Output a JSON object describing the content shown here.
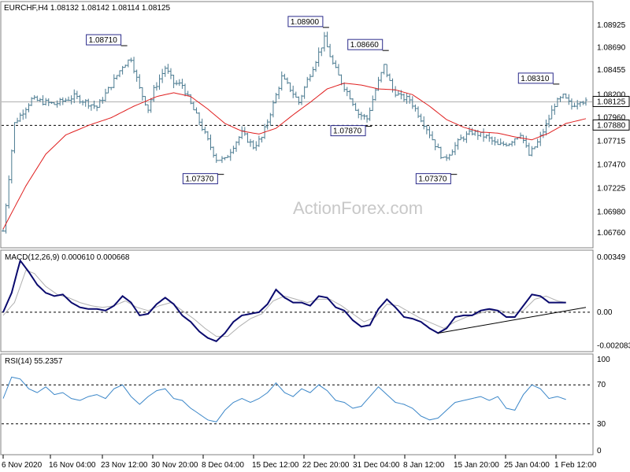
{
  "chart_data": [
    {
      "type": "bar",
      "subtype": "ohlc",
      "title": "EURCHF,H4  1.08132 1.08142 1.08114 1.08125",
      "watermark": "ActionForex.com",
      "ylim": [
        1.0663,
        1.0912
      ],
      "y_ticks": [
        "1.08925",
        "1.08690",
        "1.08455",
        "1.08200",
        "1.07960",
        "1.07715",
        "1.07470",
        "1.07225",
        "1.06980",
        "1.06760"
      ],
      "current_price_label": "1.08125",
      "level_label": "1.07880",
      "level": 1.0788,
      "annotations": [
        "1.08710",
        "1.08900",
        "1.08660",
        "1.08310",
        "1.07870",
        "1.07370",
        "1.07370"
      ],
      "colors": {
        "bars": "#4a7a90",
        "ma": "#e02020",
        "label_border": "#2a2a8a",
        "label_text": "#1a1a6a"
      },
      "close_path": [
        [
          0,
          1.0678
        ],
        [
          4,
          1.079
        ],
        [
          10,
          1.0815
        ],
        [
          18,
          1.081
        ],
        [
          25,
          1.0818
        ],
        [
          33,
          1.0807
        ],
        [
          38,
          1.083
        ],
        [
          42,
          1.085
        ],
        [
          45,
          1.0858
        ],
        [
          48,
          1.0826
        ],
        [
          51,
          1.0805
        ],
        [
          53,
          1.0825
        ],
        [
          57,
          1.0848
        ],
        [
          60,
          1.0832
        ],
        [
          63,
          1.083
        ],
        [
          66,
          1.081
        ],
        [
          69,
          1.0792
        ],
        [
          72,
          1.0772
        ],
        [
          75,
          1.0753
        ],
        [
          78,
          1.0752
        ],
        [
          81,
          1.0767
        ],
        [
          84,
          1.078
        ],
        [
          88,
          1.0766
        ],
        [
          91,
          1.0775
        ],
        [
          95,
          1.081
        ],
        [
          98,
          1.0838
        ],
        [
          101,
          1.0826
        ],
        [
          104,
          1.0812
        ],
        [
          107,
          1.0835
        ],
        [
          110,
          1.0856
        ],
        [
          113,
          1.0878
        ],
        [
          116,
          1.0852
        ],
        [
          119,
          1.0833
        ],
        [
          122,
          1.0818
        ],
        [
          125,
          1.08
        ],
        [
          128,
          1.0795
        ],
        [
          131,
          1.0825
        ],
        [
          134,
          1.085
        ],
        [
          137,
          1.0825
        ],
        [
          140,
          1.0817
        ],
        [
          143,
          1.0815
        ],
        [
          146,
          1.08
        ],
        [
          149,
          1.0785
        ],
        [
          152,
          1.0768
        ],
        [
          155,
          1.0752
        ],
        [
          158,
          1.0763
        ],
        [
          161,
          1.0774
        ],
        [
          165,
          1.0781
        ],
        [
          170,
          1.0776
        ],
        [
          174,
          1.0767
        ],
        [
          178,
          1.077
        ],
        [
          182,
          1.078
        ],
        [
          185,
          1.0757
        ],
        [
          188,
          1.077
        ],
        [
          191,
          1.0788
        ],
        [
          194,
          1.081
        ],
        [
          197,
          1.0818
        ],
        [
          200,
          1.0808
        ],
        [
          203,
          1.0815
        ],
        [
          205,
          1.0812
        ]
      ],
      "ma_path": [
        [
          0,
          1.068
        ],
        [
          8,
          1.0725
        ],
        [
          15,
          1.0758
        ],
        [
          22,
          1.0778
        ],
        [
          30,
          1.0788
        ],
        [
          38,
          1.0796
        ],
        [
          46,
          1.0808
        ],
        [
          54,
          1.0818
        ],
        [
          60,
          1.0822
        ],
        [
          66,
          1.0818
        ],
        [
          72,
          1.0805
        ],
        [
          78,
          1.079
        ],
        [
          84,
          1.0782
        ],
        [
          90,
          1.0779
        ],
        [
          96,
          1.0785
        ],
        [
          102,
          1.0799
        ],
        [
          108,
          1.0812
        ],
        [
          114,
          1.0826
        ],
        [
          120,
          1.0832
        ],
        [
          126,
          1.083
        ],
        [
          132,
          1.0826
        ],
        [
          138,
          1.0825
        ],
        [
          144,
          1.082
        ],
        [
          150,
          1.0808
        ],
        [
          156,
          1.0794
        ],
        [
          162,
          1.0786
        ],
        [
          168,
          1.0781
        ],
        [
          174,
          1.078
        ],
        [
          180,
          1.0776
        ],
        [
          186,
          1.0773
        ],
        [
          192,
          1.078
        ],
        [
          198,
          1.079
        ],
        [
          205,
          1.0795
        ]
      ]
    },
    {
      "type": "line",
      "title": "MACD(12,26,9) 0.000610 0.000668",
      "ylim": [
        -0.0023,
        0.0037
      ],
      "y_ticks": [
        "0.00349",
        "0.00",
        "-0.002083"
      ],
      "macd_path": [
        [
          0,
          0.0
        ],
        [
          3,
          0.0012
        ],
        [
          6,
          0.0032
        ],
        [
          9,
          0.0025
        ],
        [
          12,
          0.0017
        ],
        [
          15,
          0.0012
        ],
        [
          18,
          0.001
        ],
        [
          21,
          0.0011
        ],
        [
          24,
          0.0006
        ],
        [
          27,
          0.0003
        ],
        [
          30,
          0.0002
        ],
        [
          33,
          0.0002
        ],
        [
          36,
          0.0001
        ],
        [
          39,
          0.0004
        ],
        [
          42,
          0.001
        ],
        [
          45,
          0.0006
        ],
        [
          48,
          -0.0002
        ],
        [
          51,
          -0.0001
        ],
        [
          54,
          0.0005
        ],
        [
          57,
          0.0009
        ],
        [
          60,
          0.0005
        ],
        [
          63,
          -0.0002
        ],
        [
          66,
          -0.0006
        ],
        [
          69,
          -0.0012
        ],
        [
          72,
          -0.0016
        ],
        [
          75,
          -0.0018
        ],
        [
          78,
          -0.0013
        ],
        [
          81,
          -0.0006
        ],
        [
          84,
          -0.0002
        ],
        [
          87,
          -0.0001
        ],
        [
          90,
          0.0
        ],
        [
          93,
          0.0005
        ],
        [
          96,
          0.0014
        ],
        [
          99,
          0.0009
        ],
        [
          102,
          0.0006
        ],
        [
          105,
          0.0006
        ],
        [
          108,
          0.0004
        ],
        [
          111,
          0.001
        ],
        [
          114,
          0.0009
        ],
        [
          117,
          0.0003
        ],
        [
          120,
          0.0001
        ],
        [
          123,
          -0.0005
        ],
        [
          126,
          -0.0009
        ],
        [
          129,
          -0.0008
        ],
        [
          132,
          0.0002
        ],
        [
          135,
          0.0008
        ],
        [
          138,
          0.0003
        ],
        [
          141,
          -0.0003
        ],
        [
          144,
          -0.0004
        ],
        [
          147,
          -0.0006
        ],
        [
          150,
          -0.001
        ],
        [
          153,
          -0.0013
        ],
        [
          156,
          -0.001
        ],
        [
          159,
          -0.0003
        ],
        [
          162,
          -0.0002
        ],
        [
          165,
          -0.0002
        ],
        [
          168,
          0.0001
        ],
        [
          171,
          0.0002
        ],
        [
          174,
          0.0001
        ],
        [
          177,
          -0.0003
        ],
        [
          180,
          -0.0003
        ],
        [
          183,
          0.0004
        ],
        [
          186,
          0.0011
        ],
        [
          189,
          0.001
        ],
        [
          192,
          0.0006
        ],
        [
          195,
          0.0006
        ],
        [
          198,
          0.0006
        ]
      ],
      "signal_path": [
        [
          0,
          -0.0002
        ],
        [
          4,
          0.0006
        ],
        [
          8,
          0.0026
        ],
        [
          11,
          0.0024
        ],
        [
          15,
          0.0016
        ],
        [
          19,
          0.0011
        ],
        [
          23,
          0.0009
        ],
        [
          27,
          0.0006
        ],
        [
          31,
          0.0004
        ],
        [
          35,
          0.0003
        ],
        [
          39,
          0.0004
        ],
        [
          43,
          0.0007
        ],
        [
          47,
          0.0003
        ],
        [
          51,
          0.0001
        ],
        [
          55,
          0.0004
        ],
        [
          59,
          0.0006
        ],
        [
          63,
          0.0001
        ],
        [
          67,
          -0.0004
        ],
        [
          71,
          -0.001
        ],
        [
          75,
          -0.0015
        ],
        [
          79,
          -0.0015
        ],
        [
          83,
          -0.0009
        ],
        [
          87,
          -0.0004
        ],
        [
          91,
          -0.0001
        ],
        [
          95,
          0.0007
        ],
        [
          99,
          0.001
        ],
        [
          103,
          0.0008
        ],
        [
          107,
          0.0006
        ],
        [
          111,
          0.0008
        ],
        [
          115,
          0.0008
        ],
        [
          119,
          0.0004
        ],
        [
          123,
          -0.0001
        ],
        [
          127,
          -0.0006
        ],
        [
          131,
          -0.0003
        ],
        [
          135,
          0.0005
        ],
        [
          139,
          0.0004
        ],
        [
          143,
          0.0
        ],
        [
          147,
          -0.0004
        ],
        [
          151,
          -0.0007
        ],
        [
          155,
          -0.001
        ],
        [
          159,
          -0.0006
        ],
        [
          163,
          -0.0003
        ],
        [
          167,
          -0.0001
        ],
        [
          171,
          0.0001
        ],
        [
          175,
          0.0001
        ],
        [
          179,
          -0.0001
        ],
        [
          183,
          0.0001
        ],
        [
          187,
          0.0008
        ],
        [
          191,
          0.001
        ],
        [
          195,
          0.0007
        ],
        [
          198,
          0.0006
        ]
      ],
      "trendline": [
        [
          153,
          -0.0013
        ],
        [
          205,
          0.0003
        ]
      ]
    },
    {
      "type": "line",
      "title": "RSI(14) 55.2357",
      "ylim": [
        0,
        100
      ],
      "y_ticks": [
        "100",
        "70",
        "30",
        "0"
      ],
      "levels": [
        70,
        30
      ],
      "rsi_path": [
        [
          0,
          56
        ],
        [
          3,
          78
        ],
        [
          6,
          76
        ],
        [
          9,
          66
        ],
        [
          12,
          62
        ],
        [
          15,
          68
        ],
        [
          18,
          60
        ],
        [
          21,
          62
        ],
        [
          24,
          56
        ],
        [
          27,
          54
        ],
        [
          30,
          58
        ],
        [
          33,
          60
        ],
        [
          36,
          56
        ],
        [
          39,
          66
        ],
        [
          42,
          70
        ],
        [
          45,
          58
        ],
        [
          48,
          50
        ],
        [
          51,
          58
        ],
        [
          54,
          64
        ],
        [
          57,
          66
        ],
        [
          60,
          56
        ],
        [
          63,
          54
        ],
        [
          66,
          46
        ],
        [
          69,
          40
        ],
        [
          72,
          34
        ],
        [
          75,
          32
        ],
        [
          78,
          44
        ],
        [
          81,
          52
        ],
        [
          84,
          56
        ],
        [
          87,
          52
        ],
        [
          90,
          56
        ],
        [
          93,
          62
        ],
        [
          96,
          72
        ],
        [
          99,
          62
        ],
        [
          102,
          58
        ],
        [
          105,
          66
        ],
        [
          108,
          62
        ],
        [
          111,
          70
        ],
        [
          114,
          64
        ],
        [
          117,
          54
        ],
        [
          120,
          52
        ],
        [
          123,
          46
        ],
        [
          126,
          48
        ],
        [
          129,
          58
        ],
        [
          132,
          68
        ],
        [
          135,
          60
        ],
        [
          138,
          52
        ],
        [
          141,
          50
        ],
        [
          144,
          46
        ],
        [
          147,
          38
        ],
        [
          150,
          34
        ],
        [
          153,
          36
        ],
        [
          156,
          44
        ],
        [
          159,
          52
        ],
        [
          162,
          54
        ],
        [
          165,
          56
        ],
        [
          168,
          58
        ],
        [
          171,
          54
        ],
        [
          174,
          58
        ],
        [
          177,
          46
        ],
        [
          180,
          44
        ],
        [
          183,
          60
        ],
        [
          186,
          70
        ],
        [
          189,
          66
        ],
        [
          192,
          56
        ],
        [
          195,
          58
        ],
        [
          198,
          55
        ]
      ],
      "x_tick_labels": [
        "6 Nov 2020",
        "16 Nov 04:00",
        "23 Nov 12:00",
        "30 Nov 20:00",
        "8 Dec 04:00",
        "15 Dec 12:00",
        "22 Dec 20:00",
        "31 Dec 04:00",
        "8 Jan 12:00",
        "15 Jan 20:00",
        "25 Jan 04:00",
        "1 Feb 12:00"
      ]
    }
  ]
}
